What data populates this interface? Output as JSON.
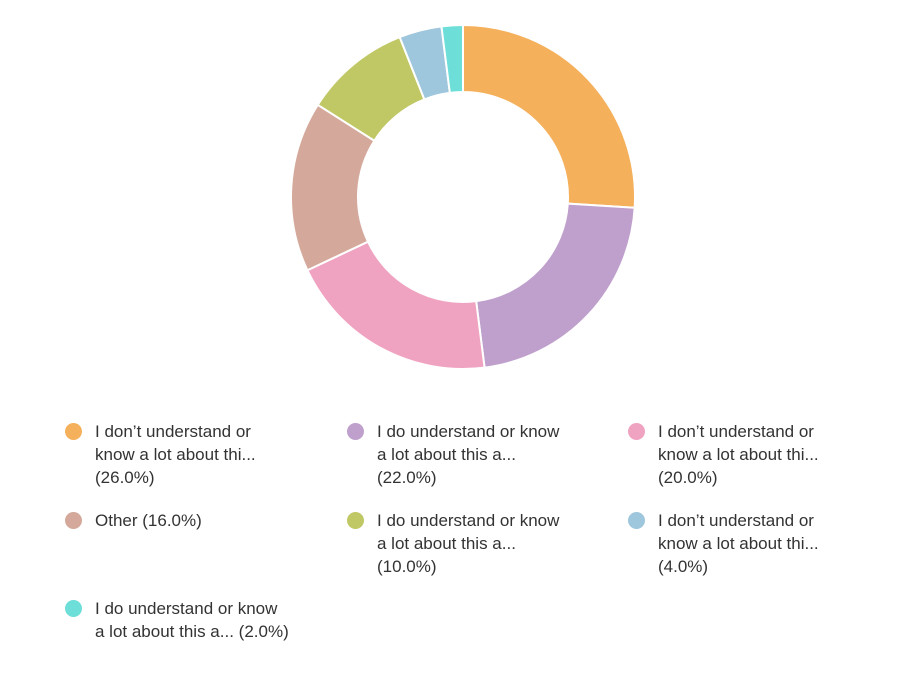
{
  "chart_data": {
    "type": "donut",
    "series": [
      {
        "name": "I don’t understand or know a lot about thi...",
        "color": "#f5b05c",
        "values": [
          26
        ],
        "value_labels": [
          "(26.0%)"
        ]
      },
      {
        "name": "I do understand or know a lot about this a...",
        "color": "#bfa0cc",
        "values": [
          22
        ],
        "value_labels": [
          "(22.0%)"
        ]
      },
      {
        "name": "I don’t understand or know a lot about thi...",
        "color": "#f0a3c0",
        "values": [
          20
        ],
        "value_labels": [
          "(20.0%)"
        ]
      },
      {
        "name": "Other",
        "color": "#d4a99b",
        "values": [
          16
        ],
        "value_labels": [
          "(16.0%)"
        ]
      },
      {
        "name": "I do understand or know a lot about this a...",
        "color": "#c0c865",
        "values": [
          10
        ],
        "value_labels": [
          "(10.0%)"
        ]
      },
      {
        "name": "I don’t understand or know a lot about thi...",
        "color": "#9ec6dc",
        "values": [
          4
        ],
        "value_labels": [
          "(4.0%)"
        ]
      },
      {
        "name": "I do understand or know a lot about this a...",
        "color": "#6dded8",
        "values": [
          2
        ],
        "value_labels": [
          "(2.0%)"
        ]
      }
    ]
  }
}
